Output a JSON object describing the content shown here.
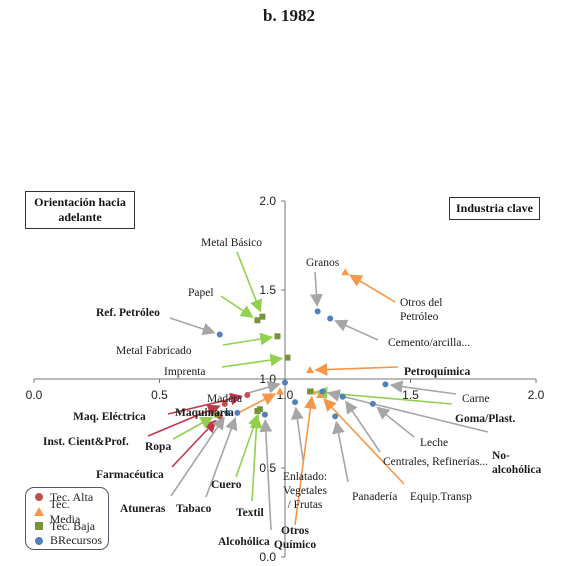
{
  "title": "b. 1982",
  "boxes": {
    "left": "Orientación hacia adelante",
    "right": "Industria clave"
  },
  "legend": [
    {
      "label": "Tec. Alta",
      "series": "tec_alta",
      "shape": "circle",
      "color": "#c0504d"
    },
    {
      "label": "Tec. Media",
      "series": "tec_media",
      "shape": "triangle",
      "color": "#f79646"
    },
    {
      "label": "Tec. Baja",
      "series": "tec_baja",
      "shape": "square",
      "color": "#77933c"
    },
    {
      "label": "BRecursos",
      "series": "brecursos",
      "shape": "circle",
      "color": "#4f81bd"
    }
  ],
  "chart_data": {
    "type": "scatter",
    "title": "b. 1982",
    "xlim": [
      0,
      2.0
    ],
    "ylim": [
      0,
      2.0
    ],
    "x_ticks": [
      "0.0",
      "0.5",
      "1.0",
      "1.5",
      "2.0"
    ],
    "y_ticks": [
      "0.0",
      "0.5",
      "1.0",
      "1.5",
      "2.0"
    ],
    "crossing": {
      "x": 1.0,
      "y": 1.0
    },
    "grid": false,
    "series": [
      {
        "name": "Tec. Alta",
        "points": [
          {
            "label": "Maq. Eléctrica",
            "x": 0.85,
            "y": 0.91,
            "bold": true
          },
          {
            "label": "Inst. Cient&Prof.",
            "x": 0.76,
            "y": 0.86,
            "bold": true
          },
          {
            "label": "Farmacéutica",
            "x": 0.74,
            "y": 0.79,
            "bold": true
          }
        ]
      },
      {
        "name": "Tec. Media",
        "points": [
          {
            "label": "Otros del Petróleo",
            "x": 1.24,
            "y": 1.6,
            "bold": false
          },
          {
            "label": "Petroquímica",
            "x": 1.1,
            "y": 1.05,
            "bold": true
          },
          {
            "label": "Maquinaria",
            "x": 0.98,
            "y": 0.93,
            "bold": true
          },
          {
            "label": "Equip.Transp",
            "x": 1.14,
            "y": 0.91,
            "bold": false
          },
          {
            "label": "Otros Químico",
            "x": 1.11,
            "y": 0.93,
            "bold": true
          }
        ]
      },
      {
        "name": "Tec. Baja",
        "points": [
          {
            "label": "Metal Básico",
            "x": 0.91,
            "y": 1.35,
            "bold": false
          },
          {
            "label": "Papel",
            "x": 0.89,
            "y": 1.33,
            "bold": false
          },
          {
            "label": "Metal Fabricado",
            "x": 0.97,
            "y": 1.24,
            "bold": false
          },
          {
            "label": "Imprenta",
            "x": 1.01,
            "y": 1.12,
            "bold": false
          },
          {
            "label": "Goma/Plast.",
            "x": 1.1,
            "y": 0.93,
            "bold": true
          },
          {
            "label": "Ropa",
            "x": 0.73,
            "y": 0.8,
            "bold": true
          },
          {
            "label": "Cuero",
            "x": 0.9,
            "y": 0.83,
            "bold": true
          },
          {
            "label": "Textil",
            "x": 0.89,
            "y": 0.82,
            "bold": true
          }
        ]
      },
      {
        "name": "BRecursos",
        "points": [
          {
            "label": "Granos",
            "x": 1.13,
            "y": 1.38,
            "bold": false
          },
          {
            "label": "Cemento/arcilla...",
            "x": 1.18,
            "y": 1.34,
            "bold": false
          },
          {
            "label": "Ref. Petróleo",
            "x": 0.74,
            "y": 1.25,
            "bold": true
          },
          {
            "label": "Madera",
            "x": 1.0,
            "y": 0.98,
            "bold": false
          },
          {
            "label": "Carne",
            "x": 1.4,
            "y": 0.97,
            "bold": false
          },
          {
            "label": "Leche",
            "x": 1.35,
            "y": 0.86,
            "bold": false
          },
          {
            "label": "Centrales, Refinerías...",
            "x": 1.23,
            "y": 0.9,
            "bold": false
          },
          {
            "label": "No-alcohólica",
            "x": 1.15,
            "y": 0.93,
            "bold": true
          },
          {
            "label": "Panadería",
            "x": 1.2,
            "y": 0.79,
            "bold": false
          },
          {
            "label": "Enlatado: Vegetales / Frutas",
            "x": 1.04,
            "y": 0.87,
            "bold": false
          },
          {
            "label": "Atuneras",
            "x": 0.77,
            "y": 0.81,
            "bold": true
          },
          {
            "label": "Tabaco",
            "x": 0.81,
            "y": 0.81,
            "bold": true
          },
          {
            "label": "Alcohólica",
            "x": 0.92,
            "y": 0.8,
            "bold": true
          }
        ]
      }
    ]
  }
}
